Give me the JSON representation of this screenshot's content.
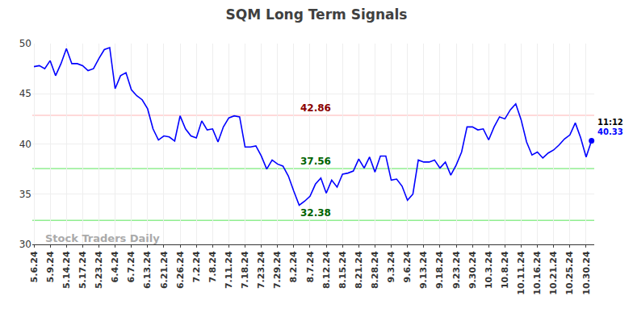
{
  "chart_data": {
    "type": "line",
    "title": "SQM Long Term Signals",
    "color": "#0000ff",
    "categories": [
      "5.6.24",
      null,
      null,
      "5.9.24",
      null,
      null,
      "5.14.24",
      null,
      null,
      "5.17.24",
      null,
      null,
      "5.23.24",
      null,
      null,
      "6.4.24",
      null,
      null,
      "6.7.24",
      null,
      null,
      "6.13.24",
      null,
      null,
      "6.21.24",
      null,
      null,
      "6.26.24",
      null,
      null,
      "7.2.24",
      null,
      null,
      "7.8.24",
      null,
      null,
      "7.11.24",
      null,
      null,
      "7.18.24",
      null,
      null,
      "7.23.24",
      null,
      null,
      "7.29.24",
      null,
      null,
      "8.2.24",
      null,
      null,
      "8.7.24",
      null,
      null,
      "8.12.24",
      null,
      null,
      "8.15.24",
      null,
      null,
      "8.21.24",
      null,
      null,
      "8.28.24",
      null,
      null,
      "9.3.24",
      null,
      null,
      "9.6.24",
      null,
      null,
      "9.13.24",
      null,
      null,
      "9.18.24",
      null,
      null,
      "9.23.24",
      null,
      null,
      "9.30.24",
      null,
      null,
      "10.3.24",
      null,
      null,
      "10.8.24",
      null,
      null,
      "10.11.24",
      null,
      null,
      "10.16.24",
      null,
      null,
      "10.21.24",
      null,
      null,
      "10.25.24",
      null,
      null,
      "10.30.24",
      null
    ],
    "values": [
      47.7,
      47.8,
      47.5,
      48.3,
      46.8,
      48.0,
      49.5,
      48.0,
      48.0,
      47.8,
      47.3,
      47.5,
      48.5,
      49.4,
      49.6,
      45.5,
      46.8,
      47.1,
      45.4,
      44.8,
      44.4,
      43.5,
      41.5,
      40.4,
      40.8,
      40.7,
      40.3,
      42.8,
      41.5,
      40.8,
      40.6,
      42.3,
      41.4,
      41.5,
      40.2,
      41.7,
      42.6,
      42.8,
      42.7,
      39.7,
      39.7,
      39.8,
      38.8,
      37.5,
      38.4,
      38.0,
      37.8,
      36.8,
      35.3,
      33.9,
      34.3,
      34.8,
      36.0,
      36.6,
      35.1,
      36.4,
      35.7,
      37.0,
      37.1,
      37.3,
      38.5,
      37.6,
      38.7,
      37.2,
      38.8,
      38.8,
      36.4,
      36.5,
      35.8,
      34.4,
      35.0,
      38.4,
      38.2,
      38.2,
      38.4,
      37.6,
      38.2,
      36.9,
      37.9,
      39.2,
      41.7,
      41.7,
      41.4,
      41.5,
      40.4,
      41.7,
      42.7,
      42.5,
      43.4,
      44.0,
      42.4,
      40.2,
      38.9,
      39.2,
      38.6,
      39.1,
      39.4,
      39.9,
      40.5,
      40.9,
      42.1,
      40.6,
      38.7,
      40.33
    ],
    "ylim": [
      30,
      50
    ],
    "yticks": [
      30,
      35,
      40,
      45,
      50
    ],
    "grid": true,
    "reference_lines": [
      {
        "value": 42.86,
        "label": "42.86",
        "color": "#ffcccc",
        "label_color": "#8b0000"
      },
      {
        "value": 37.56,
        "label": "37.56",
        "color": "#90ee90",
        "label_color": "#006400"
      },
      {
        "value": 32.38,
        "label": "32.38",
        "color": "#90ee90",
        "label_color": "#006400"
      }
    ],
    "last_point": {
      "time_label": "11:12",
      "value_label": "40.33",
      "marker": "circle"
    },
    "watermark": "Stock Traders Daily"
  }
}
